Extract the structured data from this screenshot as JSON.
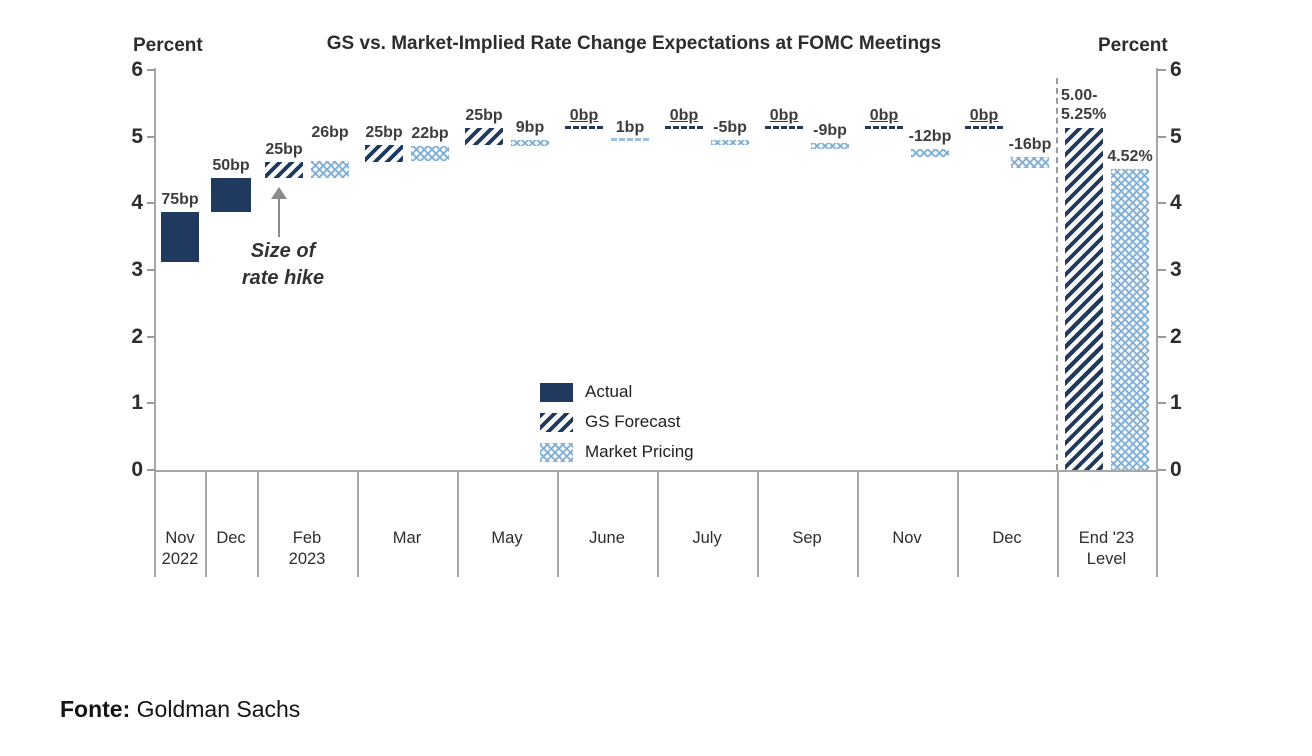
{
  "labels": {
    "percent_left": "Percent",
    "percent_right": "Percent"
  },
  "legend": [
    {
      "label": "Actual",
      "pattern": "solid"
    },
    {
      "label": "GS Forecast",
      "pattern": "hatch"
    },
    {
      "label": "Market Pricing",
      "pattern": "dots"
    }
  ],
  "annotation": {
    "line1": "Size of",
    "line2": "rate hike"
  },
  "source": {
    "label": "Fonte:",
    "value": "Goldman Sachs"
  },
  "colors": {
    "navy": "#1f3a5e",
    "light_blue": "#9dc2e4",
    "axis_gray": "#a6a6a6",
    "label_gray": "#3d3d3d"
  },
  "chart_data": {
    "type": "bar",
    "title": "GS vs. Market-Implied Rate Change Expectations at FOMC Meetings",
    "ylabel_left": "Percent",
    "ylabel_right": "Percent",
    "ylim": [
      0,
      6
    ],
    "yticks": [
      0,
      1,
      2,
      3,
      4,
      5,
      6
    ],
    "grid": false,
    "legend_position": "center",
    "categories": [
      "Nov 2022",
      "Dec",
      "Feb 2023",
      "Mar",
      "May",
      "June",
      "July",
      "Sep",
      "Nov",
      "Dec",
      "End '23 Level"
    ],
    "categories_lines": [
      [
        "Nov",
        "2022"
      ],
      [
        "Dec"
      ],
      [
        "Feb",
        "2023"
      ],
      [
        "Mar"
      ],
      [
        "May"
      ],
      [
        "June"
      ],
      [
        "July"
      ],
      [
        "Sep"
      ],
      [
        "Nov"
      ],
      [
        "Dec"
      ],
      [
        "End '23",
        "Level"
      ]
    ],
    "series": [
      {
        "name": "Actual",
        "pattern": "solid",
        "bars": [
          {
            "col": 0,
            "category": "Nov 2022",
            "label": "75bp",
            "change_bp": 75,
            "from_pct": 3.125,
            "to_pct": 3.875
          },
          {
            "col": 1,
            "category": "Dec",
            "label": "50bp",
            "change_bp": 50,
            "from_pct": 3.875,
            "to_pct": 4.375
          }
        ]
      },
      {
        "name": "GS Forecast",
        "pattern": "hatch",
        "bars": [
          {
            "col": 2,
            "category": "Feb 2023",
            "label": "25bp",
            "change_bp": 25,
            "from_pct": 4.375,
            "to_pct": 4.625
          },
          {
            "col": 3,
            "category": "Mar",
            "label": "25bp",
            "change_bp": 25,
            "from_pct": 4.625,
            "to_pct": 4.875
          },
          {
            "col": 4,
            "category": "May",
            "label": "25bp",
            "change_bp": 25,
            "from_pct": 4.875,
            "to_pct": 5.125
          },
          {
            "col": 5,
            "category": "June",
            "label": "0bp",
            "change_bp": 0,
            "from_pct": 5.125,
            "to_pct": 5.125
          },
          {
            "col": 6,
            "category": "July",
            "label": "0bp",
            "change_bp": 0,
            "from_pct": 5.125,
            "to_pct": 5.125
          },
          {
            "col": 7,
            "category": "Sep",
            "label": "0bp",
            "change_bp": 0,
            "from_pct": 5.125,
            "to_pct": 5.125
          },
          {
            "col": 8,
            "category": "Nov",
            "label": "0bp",
            "change_bp": 0,
            "from_pct": 5.125,
            "to_pct": 5.125
          },
          {
            "col": 9,
            "category": "Dec",
            "label": "0bp",
            "change_bp": 0,
            "from_pct": 5.125,
            "to_pct": 5.125
          },
          {
            "col": 10,
            "category": "End '23 Level",
            "label": "5.00-5.25%",
            "label_lines": [
              "5.00-",
              "5.25%"
            ],
            "from_pct": 0,
            "to_pct": 5.125
          }
        ]
      },
      {
        "name": "Market Pricing",
        "pattern": "dots",
        "bars": [
          {
            "col": 2,
            "category": "Feb 2023",
            "label": "26bp",
            "change_bp": 26,
            "from_pct": 4.375,
            "to_pct": 4.635
          },
          {
            "col": 3,
            "category": "Mar",
            "label": "22bp",
            "change_bp": 22,
            "from_pct": 4.635,
            "to_pct": 4.855
          },
          {
            "col": 4,
            "category": "May",
            "label": "9bp",
            "change_bp": 9,
            "from_pct": 4.855,
            "to_pct": 4.945
          },
          {
            "col": 5,
            "category": "June",
            "label": "1bp",
            "change_bp": 1,
            "from_pct": 4.945,
            "to_pct": 4.955
          },
          {
            "col": 6,
            "category": "July",
            "label": "-5bp",
            "change_bp": -5,
            "from_pct": 4.955,
            "to_pct": 4.905
          },
          {
            "col": 7,
            "category": "Sep",
            "label": "-9bp",
            "change_bp": -9,
            "from_pct": 4.905,
            "to_pct": 4.815
          },
          {
            "col": 8,
            "category": "Nov",
            "label": "-12bp",
            "change_bp": -12,
            "from_pct": 4.815,
            "to_pct": 4.695
          },
          {
            "col": 9,
            "category": "Dec",
            "label": "-16bp",
            "change_bp": -16,
            "from_pct": 4.695,
            "to_pct": 4.535
          },
          {
            "col": 10,
            "category": "End '23 Level",
            "label": "4.52%",
            "from_pct": 0,
            "to_pct": 4.52
          }
        ]
      }
    ]
  }
}
